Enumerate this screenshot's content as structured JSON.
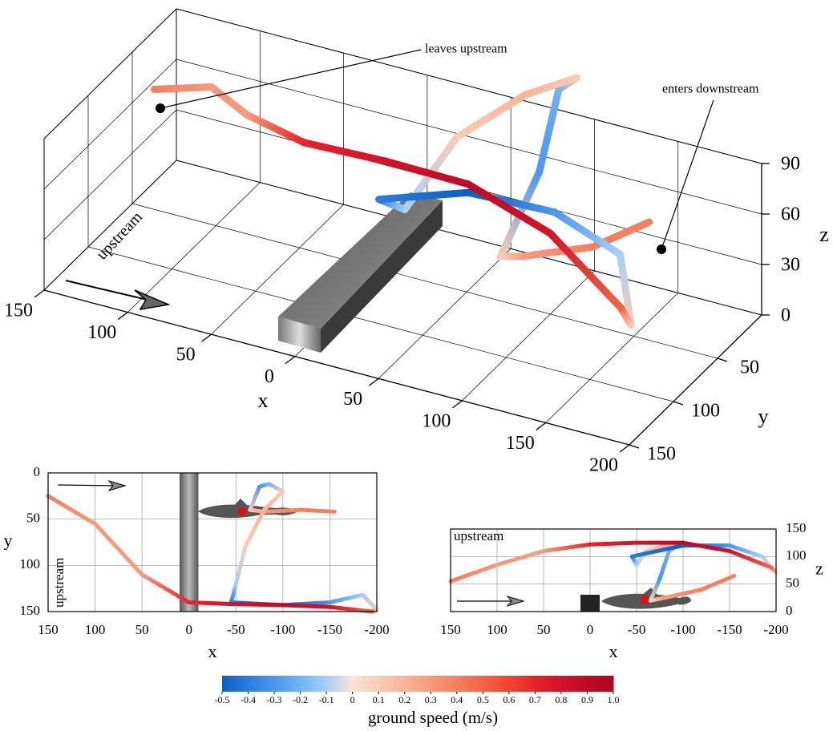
{
  "chart_data": [
    {
      "type": "line3d",
      "annotations": [
        "leaves upstream",
        "enters downstream",
        "upstream"
      ],
      "xlabel": "x",
      "ylabel": "y",
      "zlabel": "z",
      "xlim": [
        150,
        -200
      ],
      "ylim": [
        0,
        150
      ],
      "zlim": [
        0,
        90
      ],
      "xticks": [
        150,
        100,
        50,
        0,
        {
          "value": -50,
          "label": "50"
        },
        {
          "value": -100,
          "label": "100"
        },
        {
          "value": -150,
          "label": "150"
        },
        {
          "value": -200,
          "label": "200"
        }
      ],
      "yticks": [
        50,
        100,
        150
      ],
      "zticks": [
        0,
        30,
        60,
        90
      ],
      "grid": true,
      "series": [
        {
          "x": [
            -155,
            -120,
            -80,
            -65,
            -75,
            -85,
            -100,
            -80,
            -60,
            -50,
            -45,
            -100,
            -150,
            -185,
            -200,
            -195,
            -150,
            -100,
            -50,
            0,
            50,
            100,
            150
          ],
          "y": [
            42,
            40,
            42,
            40,
            15,
            12,
            20,
            40,
            80,
            120,
            140,
            143,
            140,
            132,
            148,
            150,
            145,
            143,
            142,
            140,
            110,
            55,
            25
          ],
          "z": [
            65,
            40,
            25,
            20,
            60,
            110,
            125,
            120,
            110,
            85,
            100,
            120,
            120,
            100,
            70,
            80,
            110,
            125,
            125,
            122,
            110,
            85,
            55
          ],
          "speed": [
            0.4,
            0.4,
            0.3,
            0.1,
            -0.3,
            -0.2,
            0.1,
            0.2,
            0.1,
            -0.1,
            -0.4,
            -0.5,
            -0.3,
            -0.1,
            0.1,
            0.5,
            0.8,
            0.9,
            0.8,
            0.7,
            0.3,
            0.3,
            0.4
          ]
        }
      ]
    },
    {
      "type": "line",
      "xlabel": "x",
      "ylabel": "y",
      "annotation": "upstream",
      "xlim": [
        150,
        -200
      ],
      "ylim": [
        150,
        0
      ],
      "xticks": [
        150,
        100,
        50,
        0,
        -50,
        -100,
        -150,
        -200
      ],
      "yticks": [
        0,
        50,
        100,
        150
      ],
      "grid": true
    },
    {
      "type": "line",
      "xlabel": "x",
      "ylabel": "z",
      "annotation": "upstream",
      "y_axis_position": "right",
      "xlim": [
        150,
        -200
      ],
      "ylim": [
        0,
        150
      ],
      "xticks": [
        150,
        100,
        50,
        0,
        -50,
        -100,
        -150,
        -200
      ],
      "yticks": [
        0,
        50,
        100,
        150
      ],
      "grid": true
    },
    {
      "type": "colorbar",
      "label": "ground speed (m/s)",
      "ticks": [
        -0.5,
        -0.4,
        -0.3,
        -0.2,
        -0.1,
        0,
        0.1,
        0.2,
        0.3,
        0.4,
        0.5,
        0.6,
        0.7,
        0.8,
        0.9,
        {
          "value": 1,
          "label": "1.0"
        }
      ],
      "colors": [
        "#0b5fc4",
        "#2a7dde",
        "#4a97ec",
        "#72b2f2",
        "#a6d0f7",
        "#fbe3d8",
        "#f9ccb8",
        "#f7b49a",
        "#f59a7c",
        "#f3805f",
        "#f26444",
        "#f04530",
        "#e8222a",
        "#d41228",
        "#c00a24",
        "#b00820"
      ]
    }
  ]
}
